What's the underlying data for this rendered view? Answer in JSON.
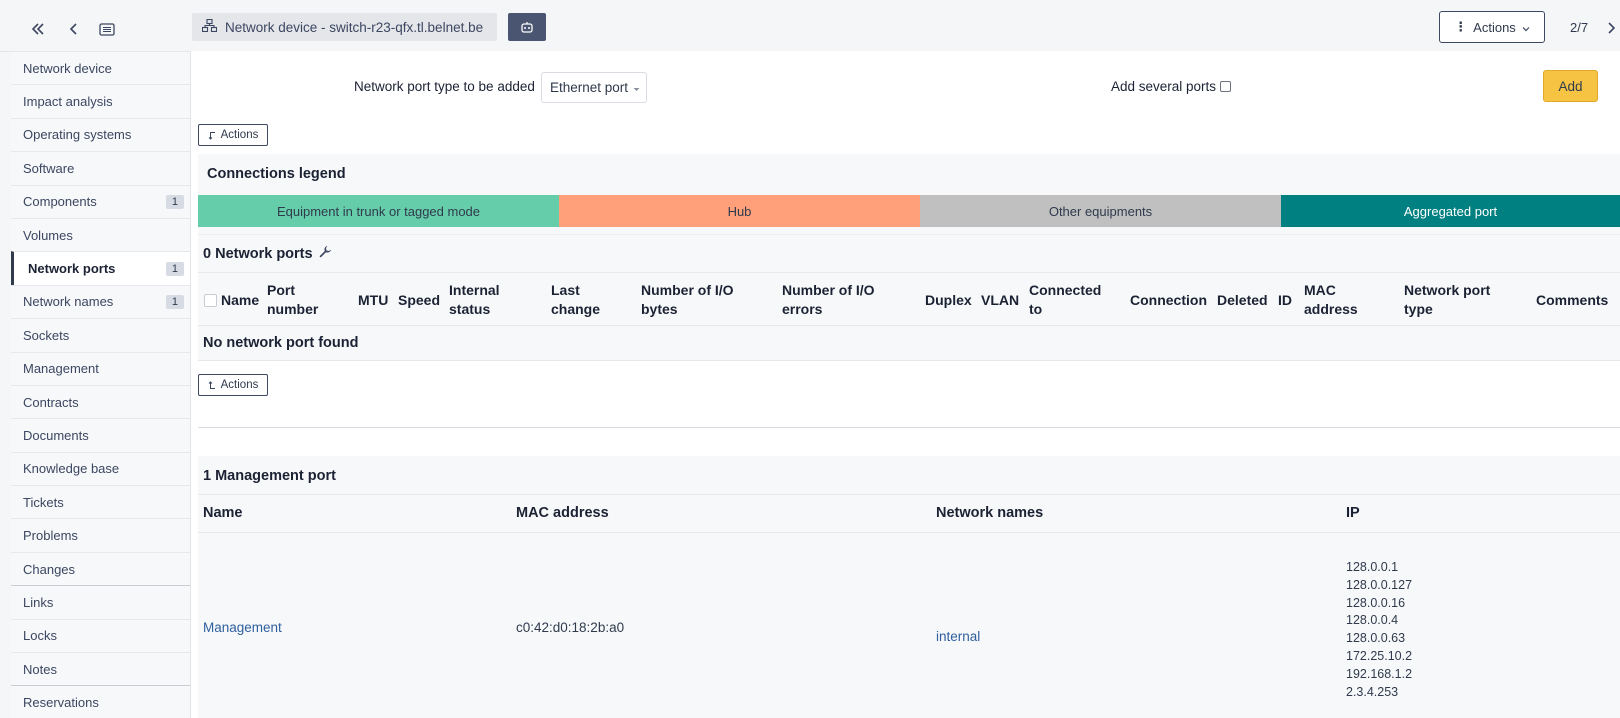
{
  "topbar": {
    "title": "Network device - switch-r23-qfx.tl.belnet.be",
    "actions_label": "Actions",
    "pager": "2/7"
  },
  "sidebar": {
    "items": [
      {
        "label": "Network device",
        "badge": ""
      },
      {
        "label": "Impact analysis",
        "badge": ""
      },
      {
        "label": "Operating systems",
        "badge": ""
      },
      {
        "label": "Software",
        "badge": ""
      },
      {
        "label": "Components",
        "badge": "1"
      },
      {
        "label": "Volumes",
        "badge": ""
      },
      {
        "label": "Network ports",
        "badge": "1"
      },
      {
        "label": "Network names",
        "badge": "1"
      },
      {
        "label": "Sockets",
        "badge": ""
      },
      {
        "label": "Management",
        "badge": ""
      },
      {
        "label": "Contracts",
        "badge": ""
      },
      {
        "label": "Documents",
        "badge": ""
      },
      {
        "label": "Knowledge base",
        "badge": ""
      },
      {
        "label": "Tickets",
        "badge": ""
      },
      {
        "label": "Problems",
        "badge": ""
      },
      {
        "label": "Changes",
        "badge": ""
      },
      {
        "label": "Links",
        "badge": ""
      },
      {
        "label": "Locks",
        "badge": ""
      },
      {
        "label": "Notes",
        "badge": ""
      },
      {
        "label": "Reservations",
        "badge": ""
      }
    ]
  },
  "add_form": {
    "type_label": "Network port type to be added",
    "type_value": "Ethernet port",
    "several_label": "Add several ports",
    "add_label": "Add"
  },
  "actions_mini": "Actions",
  "legend": {
    "title": "Connections legend",
    "items": [
      {
        "label": "Equipment in trunk or tagged mode",
        "color": "#66cdaa"
      },
      {
        "label": "Hub",
        "color": "#ffa07a"
      },
      {
        "label": "Other equipments",
        "color": "#c0c0c0"
      },
      {
        "label": "Aggregated port",
        "color": "#008080"
      }
    ]
  },
  "ports": {
    "header": "0 Network ports",
    "columns": [
      "Name",
      "Port number",
      "MTU",
      "Speed",
      "Internal status",
      "Last change",
      "Number of I/O bytes",
      "Number of I/O errors",
      "Duplex",
      "VLAN",
      "Connected to",
      "Connection",
      "Deleted",
      "ID",
      "MAC address",
      "Network port type",
      "Comments"
    ],
    "empty": "No network port found"
  },
  "management": {
    "title": "1 Management port",
    "columns": [
      "Name",
      "MAC address",
      "Network names",
      "IP"
    ],
    "row": {
      "name": "Management",
      "mac": "c0:42:d0:18:2b:a0",
      "network_name": "internal",
      "ips": [
        "128.0.0.1",
        "128.0.0.127",
        "128.0.0.16",
        "128.0.0.4",
        "128.0.0.63",
        "172.25.10.2",
        "192.168.1.2",
        "2.3.4.253"
      ]
    }
  }
}
